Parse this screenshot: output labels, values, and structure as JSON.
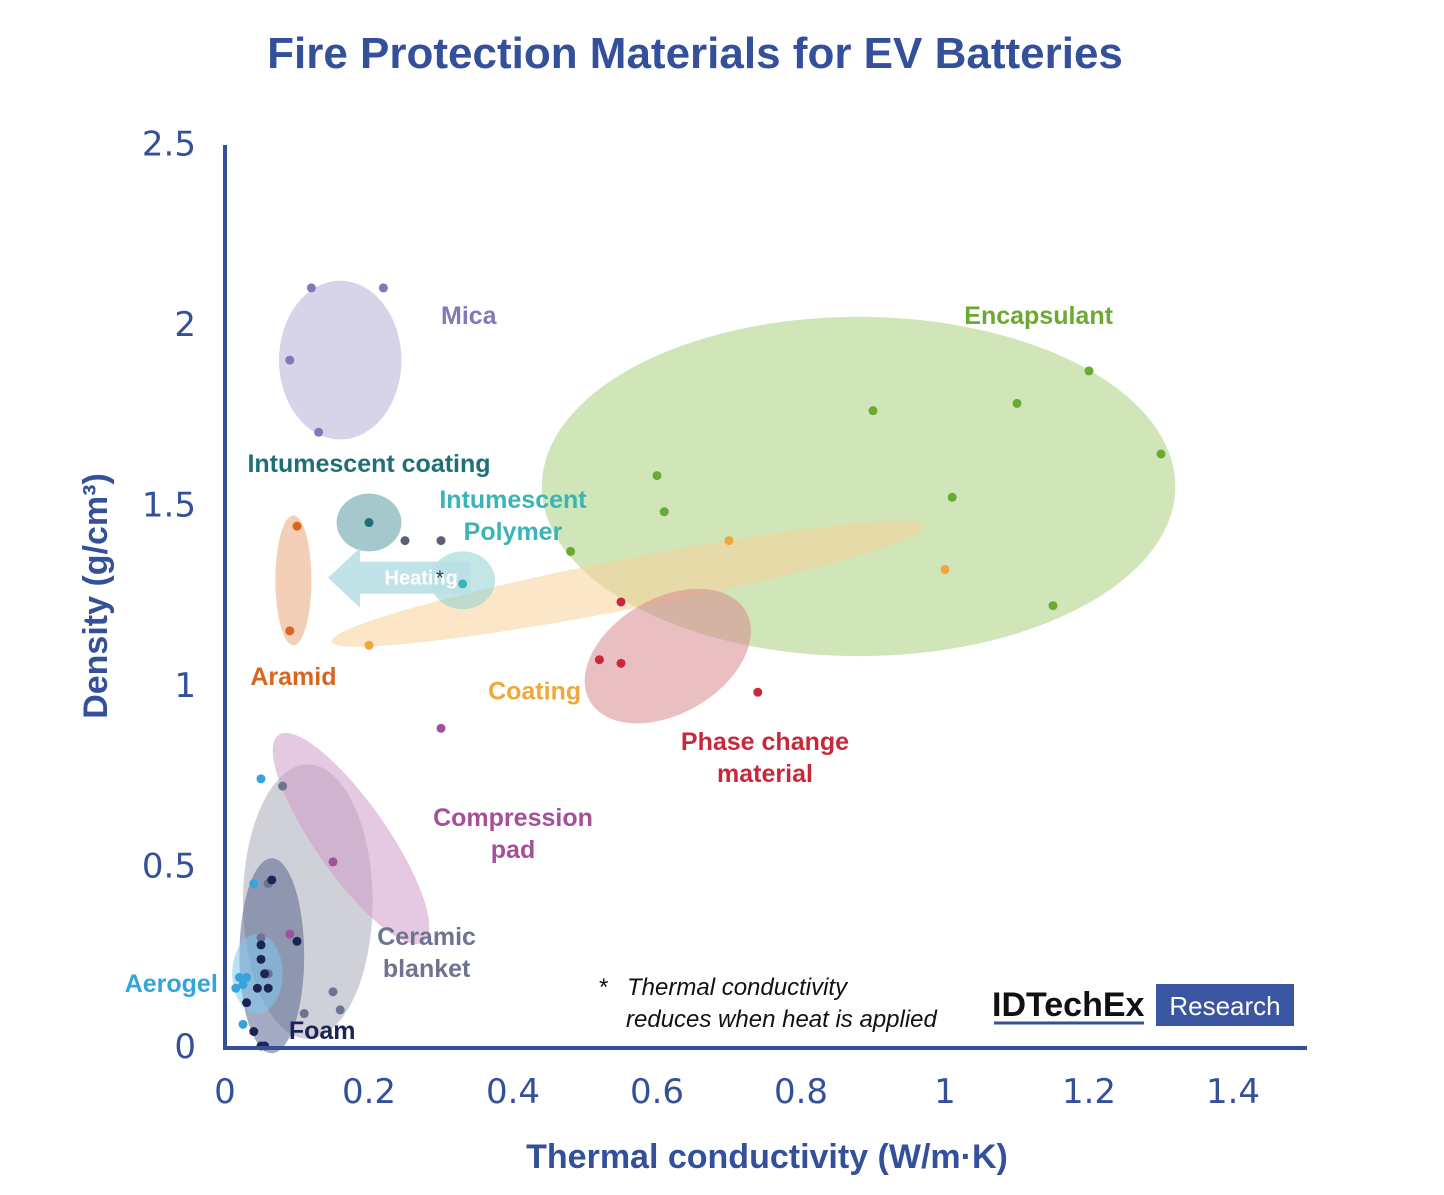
{
  "chart_data": {
    "type": "scatter",
    "title": "Fire Protection Materials for EV Batteries",
    "xlabel": "Thermal conductivity (W/m·K)",
    "ylabel": "Density (g/cm³)",
    "xlim": [
      0,
      1.5
    ],
    "ylim": [
      0,
      2.5
    ],
    "x_ticks": [
      {
        "v": 0,
        "label": "0"
      },
      {
        "v": 0.2,
        "label": "0.2"
      },
      {
        "v": 0.4,
        "label": "0.4"
      },
      {
        "v": 0.6,
        "label": "0.6"
      },
      {
        "v": 0.8,
        "label": "0.8"
      },
      {
        "v": 1,
        "label": "1"
      },
      {
        "v": 1.2,
        "label": "1.2"
      },
      {
        "v": 1.4,
        "label": "1.4"
      }
    ],
    "y_ticks": [
      {
        "v": 0,
        "label": "0"
      },
      {
        "v": 0.5,
        "label": "0.5"
      },
      {
        "v": 1,
        "label": "1"
      },
      {
        "v": 1.5,
        "label": "1.5"
      },
      {
        "v": 2,
        "label": "2"
      },
      {
        "v": 2.5,
        "label": "2.5"
      }
    ],
    "grid": false,
    "series": [
      {
        "name": "Mica",
        "label_lines": [
          "Mica"
        ],
        "color": "#8478b8",
        "fill": "#b7aed6",
        "region": {
          "cx": 0.16,
          "cy": 1.9,
          "rx": 0.085,
          "ry": 0.22,
          "angle": 0
        },
        "label_at": [
          0.3,
          2.0
        ],
        "points": [
          [
            0.12,
            2.1
          ],
          [
            0.22,
            2.1
          ],
          [
            0.09,
            1.9
          ],
          [
            0.13,
            1.7
          ]
        ]
      },
      {
        "name": "Encapsulant",
        "label_lines": [
          "Encapsulant"
        ],
        "color": "#6aaa30",
        "fill": "#a9cf7e",
        "region": {
          "cx": 0.88,
          "cy": 1.55,
          "rx": 0.44,
          "ry": 0.47,
          "angle": 0
        },
        "label_at": [
          1.13,
          2.0
        ],
        "points": [
          [
            1.2,
            1.87
          ],
          [
            0.9,
            1.76
          ],
          [
            1.1,
            1.78
          ],
          [
            1.3,
            1.64
          ],
          [
            0.6,
            1.58
          ],
          [
            0.61,
            1.48
          ],
          [
            1.01,
            1.52
          ],
          [
            0.48,
            1.37
          ],
          [
            1.15,
            1.22
          ]
        ]
      },
      {
        "name": "Intumescent coating",
        "label_lines": [
          "Intumescent coating"
        ],
        "color": "#1e6f78",
        "fill": "#5a9aa2",
        "region": {
          "cx": 0.2,
          "cy": 1.45,
          "rx": 0.045,
          "ry": 0.08,
          "angle": 0
        },
        "label_at": [
          0.2,
          1.59
        ],
        "points": [
          [
            0.2,
            1.45
          ]
        ]
      },
      {
        "name": "Intumescent Polymer",
        "label_lines": [
          "Intumescent",
          "Polymer"
        ],
        "color": "#3bb4b7",
        "fill": "#8fd0d2",
        "region": {
          "cx": 0.33,
          "cy": 1.29,
          "rx": 0.045,
          "ry": 0.08,
          "angle": 0
        },
        "label_at": [
          0.4,
          1.49
        ],
        "points": [
          [
            0.33,
            1.28
          ]
        ]
      },
      {
        "name": "Aramid",
        "label_lines": [
          "Aramid"
        ],
        "color": "#d9661f",
        "fill": "#e8a77a",
        "region": {
          "cx": 0.095,
          "cy": 1.29,
          "rx": 0.025,
          "ry": 0.18,
          "angle": 0
        },
        "label_at": [
          0.095,
          1.0
        ],
        "points": [
          [
            0.1,
            1.44
          ],
          [
            0.09,
            1.15
          ]
        ]
      },
      {
        "name": "Coating",
        "label_lines": [
          "Coating"
        ],
        "color": "#f0a73c",
        "fill": "#f8d39a",
        "region": {
          "cx": 0.56,
          "cy": 1.28,
          "rx": 0.42,
          "ry": 0.07,
          "angle": -11
        },
        "label_at": [
          0.43,
          0.96
        ],
        "points": [
          [
            0.2,
            1.11
          ],
          [
            0.7,
            1.4
          ],
          [
            1.0,
            1.32
          ]
        ]
      },
      {
        "name": "Phase change material",
        "label_lines": [
          "Phase change",
          "material"
        ],
        "color": "#c8283c",
        "fill": "#d88b90",
        "region": {
          "cx": 0.615,
          "cy": 1.08,
          "rx": 0.125,
          "ry": 0.16,
          "angle": -30
        },
        "label_at": [
          0.75,
          0.82
        ],
        "points": [
          [
            0.55,
            1.23
          ],
          [
            0.52,
            1.07
          ],
          [
            0.55,
            1.06
          ],
          [
            0.74,
            0.98
          ]
        ]
      },
      {
        "name": "Compression pad",
        "label_lines": [
          "Compression",
          "pad"
        ],
        "color": "#a44f9a",
        "fill": "#cf9bc9",
        "region": {
          "cx": 0.175,
          "cy": 0.575,
          "rx": 0.05,
          "ry": 0.35,
          "angle": -35
        },
        "label_at": [
          0.4,
          0.61
        ],
        "points": [
          [
            0.3,
            0.88
          ],
          [
            0.15,
            0.51
          ],
          [
            0.09,
            0.31
          ]
        ]
      },
      {
        "name": "Ceramic blanket",
        "label_lines": [
          "Ceramic",
          "blanket"
        ],
        "color": "#6d7390",
        "fill": "#a9acb8",
        "region": {
          "cx": 0.115,
          "cy": 0.4,
          "rx": 0.09,
          "ry": 0.38,
          "angle": 0
        },
        "label_at": [
          0.28,
          0.28
        ],
        "points": [
          [
            0.08,
            0.72
          ],
          [
            0.06,
            0.45
          ],
          [
            0.05,
            0.3
          ],
          [
            0.06,
            0.2
          ],
          [
            0.15,
            0.15
          ],
          [
            0.16,
            0.1
          ],
          [
            0.11,
            0.09
          ]
        ]
      },
      {
        "name": "Aerogel",
        "label_lines": [
          "Aerogel"
        ],
        "color": "#36a4dc",
        "fill": "#82c8ee",
        "region": {
          "cx": 0.045,
          "cy": 0.2,
          "rx": 0.035,
          "ry": 0.11,
          "angle": 0
        },
        "label_at": [
          -0.01,
          0.15
        ],
        "points": [
          [
            0.05,
            0.74
          ],
          [
            0.04,
            0.45
          ],
          [
            0.02,
            0.19
          ],
          [
            0.025,
            0.17
          ],
          [
            0.03,
            0.19
          ],
          [
            0.015,
            0.16
          ],
          [
            0.025,
            0.06
          ]
        ]
      },
      {
        "name": "Foam",
        "label_lines": [
          "Foam"
        ],
        "color": "#1a2556",
        "fill": "#5a6690",
        "region": {
          "cx": 0.065,
          "cy": 0.25,
          "rx": 0.045,
          "ry": 0.27,
          "angle": 0
        },
        "label_at": [
          0.135,
          0.02
        ],
        "points": [
          [
            0.065,
            0.46
          ],
          [
            0.1,
            0.29
          ],
          [
            0.05,
            0.28
          ],
          [
            0.05,
            0.24
          ],
          [
            0.055,
            0.2
          ],
          [
            0.06,
            0.16
          ],
          [
            0.045,
            0.16
          ],
          [
            0.03,
            0.12
          ],
          [
            0.04,
            0.04
          ],
          [
            0.05,
            0.0
          ],
          [
            0.055,
            0.0
          ]
        ]
      }
    ],
    "annotation": {
      "arrow_label": "Heating",
      "arrow_from": [
        0.32,
        1.3
      ],
      "arrow_to": [
        0.15,
        1.3
      ],
      "asterisk": "*",
      "note_lines": [
        "Thermal conductivity",
        "reduces when heat is applied"
      ]
    },
    "extra_points": [
      {
        "x": 0.25,
        "y": 1.4,
        "color": "#5b6077"
      },
      {
        "x": 0.3,
        "y": 1.4,
        "color": "#5b6077"
      },
      {
        "x": 0.3,
        "y": 1.29,
        "color": "#333333",
        "symbol": "*"
      }
    ]
  },
  "logo": {
    "brand": "IDTechEx",
    "tag": "Research"
  },
  "colors": {
    "title": "#34509a",
    "axis": "#34509a",
    "tick": "#34509a"
  }
}
